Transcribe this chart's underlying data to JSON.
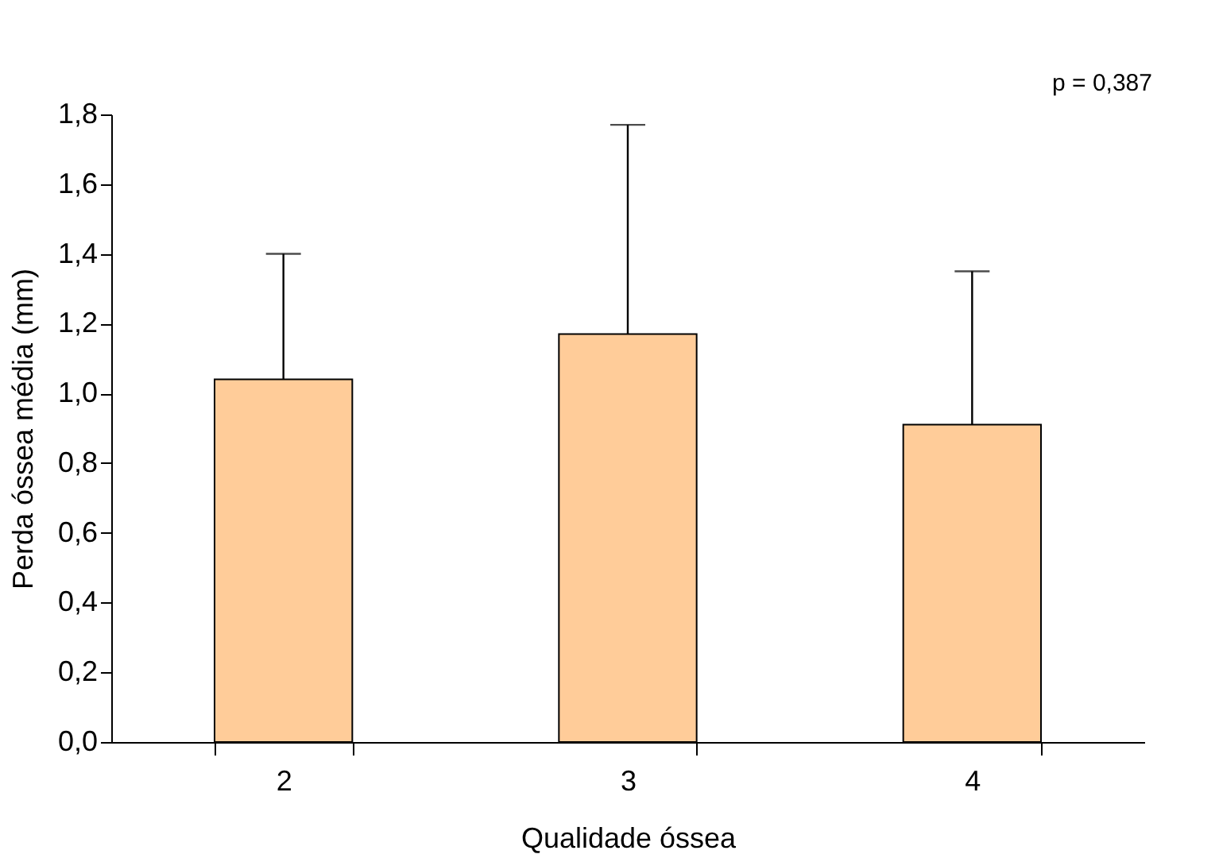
{
  "chart_data": {
    "type": "bar",
    "xlabel": "Qualidade óssea",
    "ylabel": "Perda óssea média (mm)",
    "categories": [
      "2",
      "3",
      "4"
    ],
    "values": [
      1.04,
      1.17,
      0.91
    ],
    "errors": [
      [
        1.04,
        1.4
      ],
      [
        1.17,
        1.77
      ],
      [
        0.91,
        1.35
      ]
    ],
    "color": "#ffcc99",
    "ylim": [
      0,
      1.8
    ],
    "yticks": [
      {
        "value": 0,
        "label": "0,0"
      },
      {
        "value": 0.2,
        "label": "0,2"
      },
      {
        "value": 0.4,
        "label": "0,4"
      },
      {
        "value": 0.6,
        "label": "0,6"
      },
      {
        "value": 0.8,
        "label": "0,8"
      },
      {
        "value": 1.0,
        "label": "1,0"
      },
      {
        "value": 1.2,
        "label": "1,2"
      },
      {
        "value": 1.4,
        "label": "1,4"
      },
      {
        "value": 1.6,
        "label": "1,6"
      },
      {
        "value": 1.8,
        "label": "1,8"
      }
    ],
    "grid": false,
    "annotations": [
      "p = 0,387"
    ]
  }
}
